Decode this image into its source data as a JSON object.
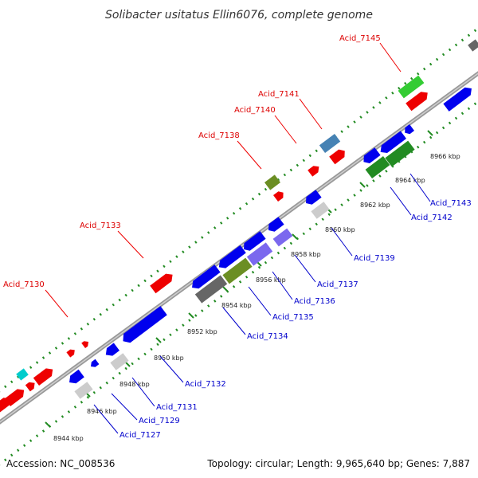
{
  "title": "Solibacter usitatus Ellin6076, complete genome",
  "footer": {
    "accession": "Accession: NC_008536",
    "summary": "Topology: circular; Length: 9,965,640 bp; Genes: 7,887"
  },
  "colors": {
    "backbone": "#888888",
    "ruler": "#228b22",
    "label_top": "#dd0000",
    "label_bottom": "#0000cc",
    "blue": "#0000ee",
    "red": "#ee0000",
    "green": "#33cc33",
    "darkgreen": "#228b22",
    "olive": "#6b8e23",
    "steel": "#4682b4",
    "purple": "#7b68ee",
    "gray": "#666666",
    "lightgray": "#cccccc",
    "cyan": "#00cccc"
  },
  "ticks": [
    "8944 kbp",
    "8946 kbp",
    "8948 kbp",
    "8950 kbp",
    "8952 kbp",
    "8954 kbp",
    "8956 kbp",
    "8958 kbp",
    "8960 kbp",
    "8962 kbp",
    "8964 kbp",
    "8966 kbp"
  ],
  "labels_top": [
    "Acid_7130",
    "Acid_7133",
    "Acid_7138",
    "Acid_7140",
    "Acid_7141",
    "Acid_7145"
  ],
  "labels_bottom": [
    "Acid_7127",
    "Acid_7129",
    "Acid_7131",
    "Acid_7132",
    "Acid_7134",
    "Acid_7135",
    "Acid_7136",
    "Acid_7137",
    "Acid_7139",
    "Acid_7142",
    "Acid_7143"
  ]
}
